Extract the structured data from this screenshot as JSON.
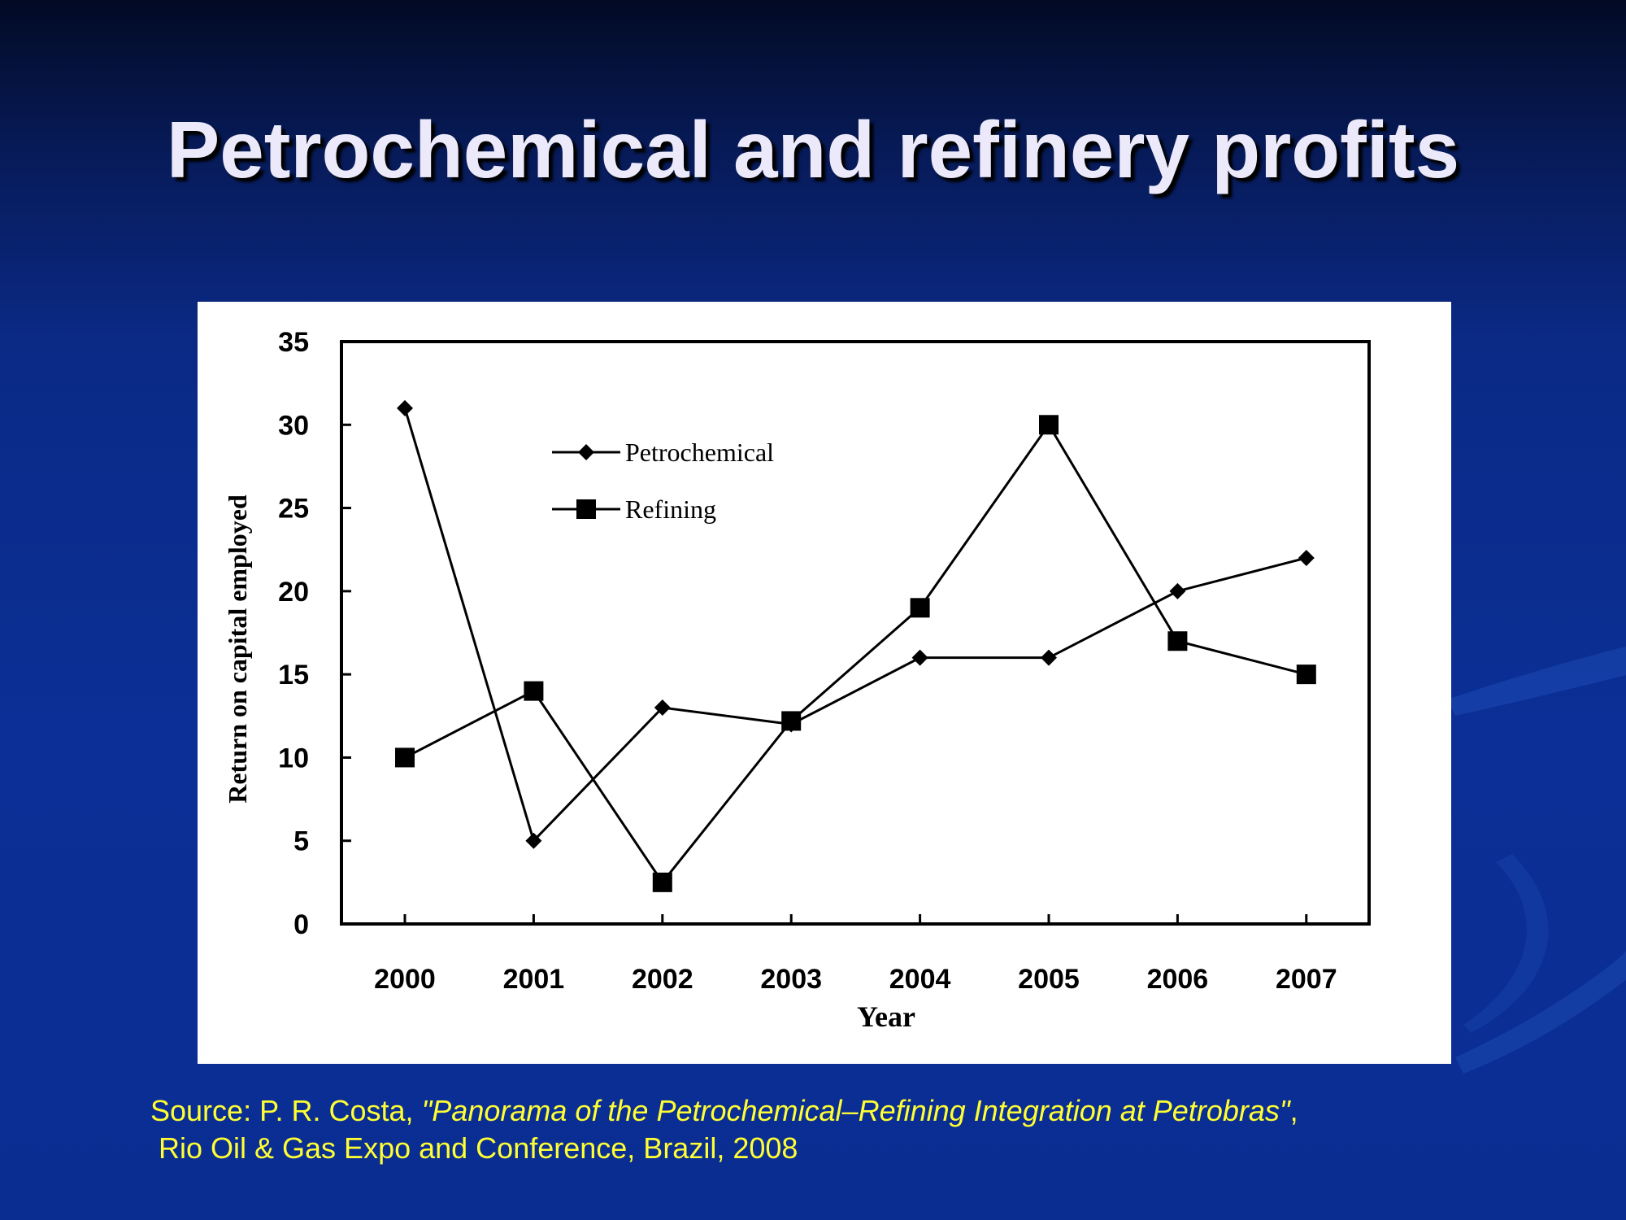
{
  "slide": {
    "title": "Petrochemical and refinery profits",
    "source": {
      "prefix": "Source: P. R. Costa, ",
      "work": "\"Panorama of the Petrochemical–Refining Integration at Petrobras\"",
      "suffix": ",",
      "line2": "Rio Oil & Gas Expo and Conference, Brazil, 2008"
    }
  },
  "colors": {
    "background_top": "#020a24",
    "background_main": "#0b2f96",
    "title_text": "#ece9fb",
    "source_text": "#ffff33",
    "chart_ink": "#000000"
  },
  "chart_data": {
    "type": "line",
    "title": "",
    "xlabel": "Year",
    "ylabel": "Return on capital employed",
    "categories": [
      "2000",
      "2001",
      "2002",
      "2003",
      "2004",
      "2005",
      "2006",
      "2007"
    ],
    "ylim": [
      0,
      35
    ],
    "yticks": [
      0,
      5,
      10,
      15,
      20,
      25,
      30,
      35
    ],
    "grid": false,
    "legend_position": "top-left",
    "series": [
      {
        "name": "Petrochemical",
        "marker": "diamond",
        "values": [
          31,
          5,
          13,
          12,
          16,
          16,
          20,
          22
        ]
      },
      {
        "name": "Refining",
        "marker": "square",
        "values": [
          10,
          14,
          2.5,
          12.2,
          19,
          30,
          17,
          15
        ]
      }
    ]
  }
}
